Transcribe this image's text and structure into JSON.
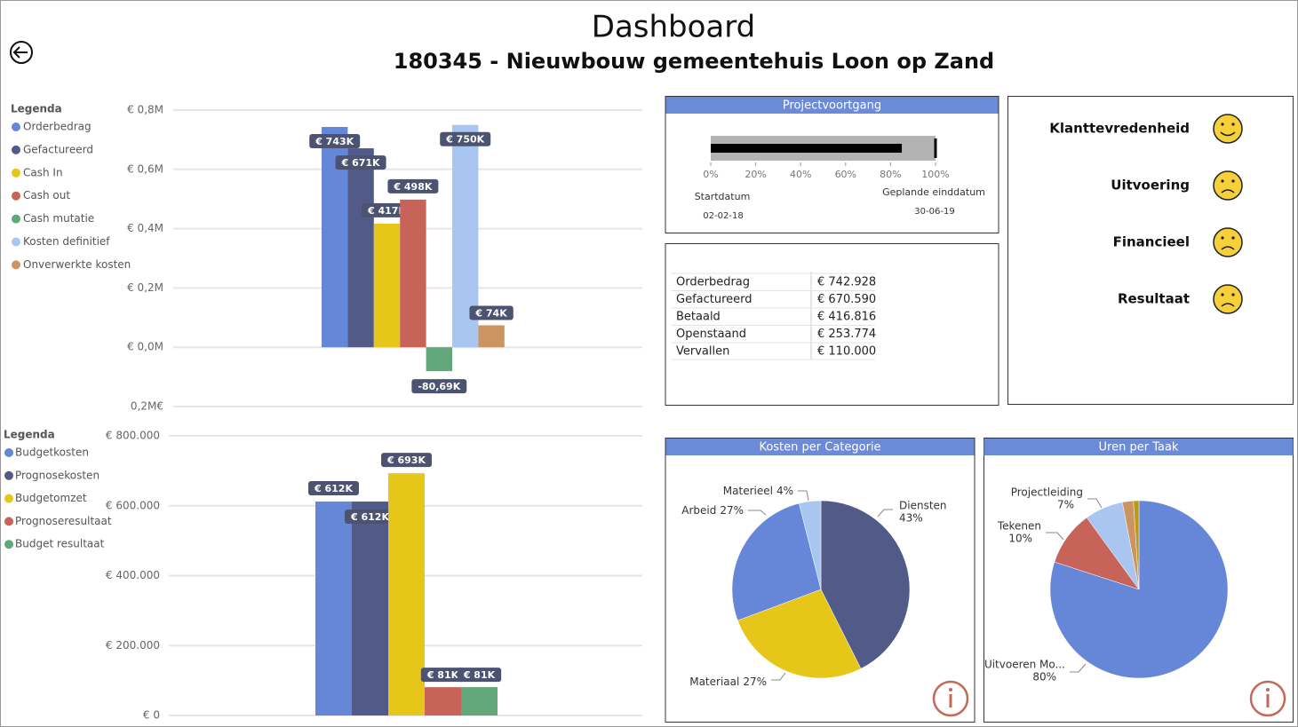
{
  "header": {
    "title": "Dashboard",
    "subtitle": "180345 - Nieuwbouw gemeentehuis Loon op Zand"
  },
  "chart_data": [
    {
      "type": "bar",
      "legend_title": "Legenda",
      "ylim": [
        -200000,
        800000
      ],
      "yticks": [
        {
          "value": 800000,
          "label": "€ 0,8M"
        },
        {
          "value": 600000,
          "label": "€ 0,6M"
        },
        {
          "value": 400000,
          "label": "€ 0,4M"
        },
        {
          "value": 200000,
          "label": "€ 0,2M"
        },
        {
          "value": 0,
          "label": "€ 0,0M"
        },
        {
          "value": -200000,
          "label": "0,2M€"
        }
      ],
      "grid": true,
      "series": [
        {
          "name": "Orderbedrag",
          "color": "#6686d8",
          "values": [
            743000
          ],
          "value_labels": [
            "€ 743K"
          ]
        },
        {
          "name": "Gefactureerd",
          "color": "#525a87",
          "values": [
            671000
          ],
          "value_labels": [
            "€ 671K"
          ]
        },
        {
          "name": "Cash In",
          "color": "#e6c619",
          "values": [
            417000
          ],
          "value_labels": [
            "€ 417K"
          ]
        },
        {
          "name": "Cash out",
          "color": "#c8635a",
          "values": [
            498000
          ],
          "value_labels": [
            "€ 498K"
          ]
        },
        {
          "name": "Cash mutatie",
          "color": "#62a77a",
          "values": [
            -80690
          ],
          "value_labels": [
            "-80,69K"
          ]
        },
        {
          "name": "Kosten definitief",
          "color": "#a8c6f0",
          "values": [
            750000
          ],
          "value_labels": [
            "€ 750K"
          ]
        },
        {
          "name": "Onverwerkte kosten",
          "color": "#cc9460",
          "values": [
            74000
          ],
          "value_labels": [
            "€ 74K"
          ]
        }
      ]
    },
    {
      "type": "bar",
      "legend_title": "Legenda",
      "ylim": [
        0,
        800000
      ],
      "yticks": [
        {
          "value": 800000,
          "label": "€ 800.000"
        },
        {
          "value": 600000,
          "label": "€ 600.000"
        },
        {
          "value": 400000,
          "label": "€ 400.000"
        },
        {
          "value": 200000,
          "label": "€ 200.000"
        },
        {
          "value": 0,
          "label": "€ 0"
        }
      ],
      "grid": true,
      "series": [
        {
          "name": "Budgetkosten",
          "color": "#6686d8",
          "values": [
            612000
          ],
          "value_labels": [
            "€ 612K"
          ]
        },
        {
          "name": "Prognosekosten",
          "color": "#525a87",
          "values": [
            612000
          ],
          "value_labels": [
            "€ 612K"
          ]
        },
        {
          "name": "Budgetomzet",
          "color": "#e6c619",
          "values": [
            693000
          ],
          "value_labels": [
            "€ 693K"
          ]
        },
        {
          "name": "Prognoseresultaat",
          "color": "#c8635a",
          "values": [
            81000
          ],
          "value_labels": [
            "€ 81K"
          ]
        },
        {
          "name": "Budget resultaat",
          "color": "#62a77a",
          "values": [
            81000
          ],
          "value_labels": [
            "€ 81K"
          ]
        }
      ]
    },
    {
      "type": "bullet",
      "title": "Projectvoortgang",
      "value": 85,
      "target": 100,
      "xlim": [
        0,
        100
      ],
      "xticks": [
        {
          "value": 0,
          "label": "0%"
        },
        {
          "value": 20,
          "label": "20%"
        },
        {
          "value": 40,
          "label": "40%"
        },
        {
          "value": 60,
          "label": "60%"
        },
        {
          "value": 80,
          "label": "80%"
        },
        {
          "value": 100,
          "label": "100%"
        }
      ],
      "start_label": "Startdatum",
      "start_date": "02-02-18",
      "end_label": "Geplande einddatum",
      "end_date": "30-06-19"
    },
    {
      "type": "pie",
      "title": "Kosten per Categorie",
      "categories": [
        "Diensten",
        "Materiaal",
        "Arbeid",
        "Materieel"
      ],
      "values": [
        43,
        27,
        27,
        4
      ],
      "value_labels": [
        "43%",
        "27%",
        "27%",
        "4%"
      ],
      "colors": [
        "#525a87",
        "#e6c619",
        "#6686d8",
        "#a8c6f0"
      ]
    },
    {
      "type": "pie",
      "title": "Uren per Taak",
      "categories": [
        "Uitvoeren Mo...",
        "Tekenen",
        "Projectleiding",
        null,
        null
      ],
      "values": [
        80,
        10,
        7,
        2,
        1
      ],
      "value_labels": [
        "80%",
        "10%",
        "7%",
        null,
        null
      ],
      "colors": [
        "#6686d8",
        "#c8635a",
        "#a8c6f0",
        "#cc9460",
        "#b89a16"
      ]
    }
  ],
  "table": {
    "rows": [
      [
        "Orderbedrag",
        "€ 742.928"
      ],
      [
        "Gefactureerd",
        "€ 670.590"
      ],
      [
        "Betaald",
        "€ 416.816"
      ],
      [
        "Openstaand",
        "€ 253.774"
      ],
      [
        "Vervallen",
        "€ 110.000"
      ]
    ]
  },
  "kpis": [
    {
      "label": "Klanttevredenheid",
      "mood": "happy"
    },
    {
      "label": "Uitvoering",
      "mood": "sad"
    },
    {
      "label": "Financieel",
      "mood": "sad"
    },
    {
      "label": "Resultaat",
      "mood": "sad"
    }
  ]
}
